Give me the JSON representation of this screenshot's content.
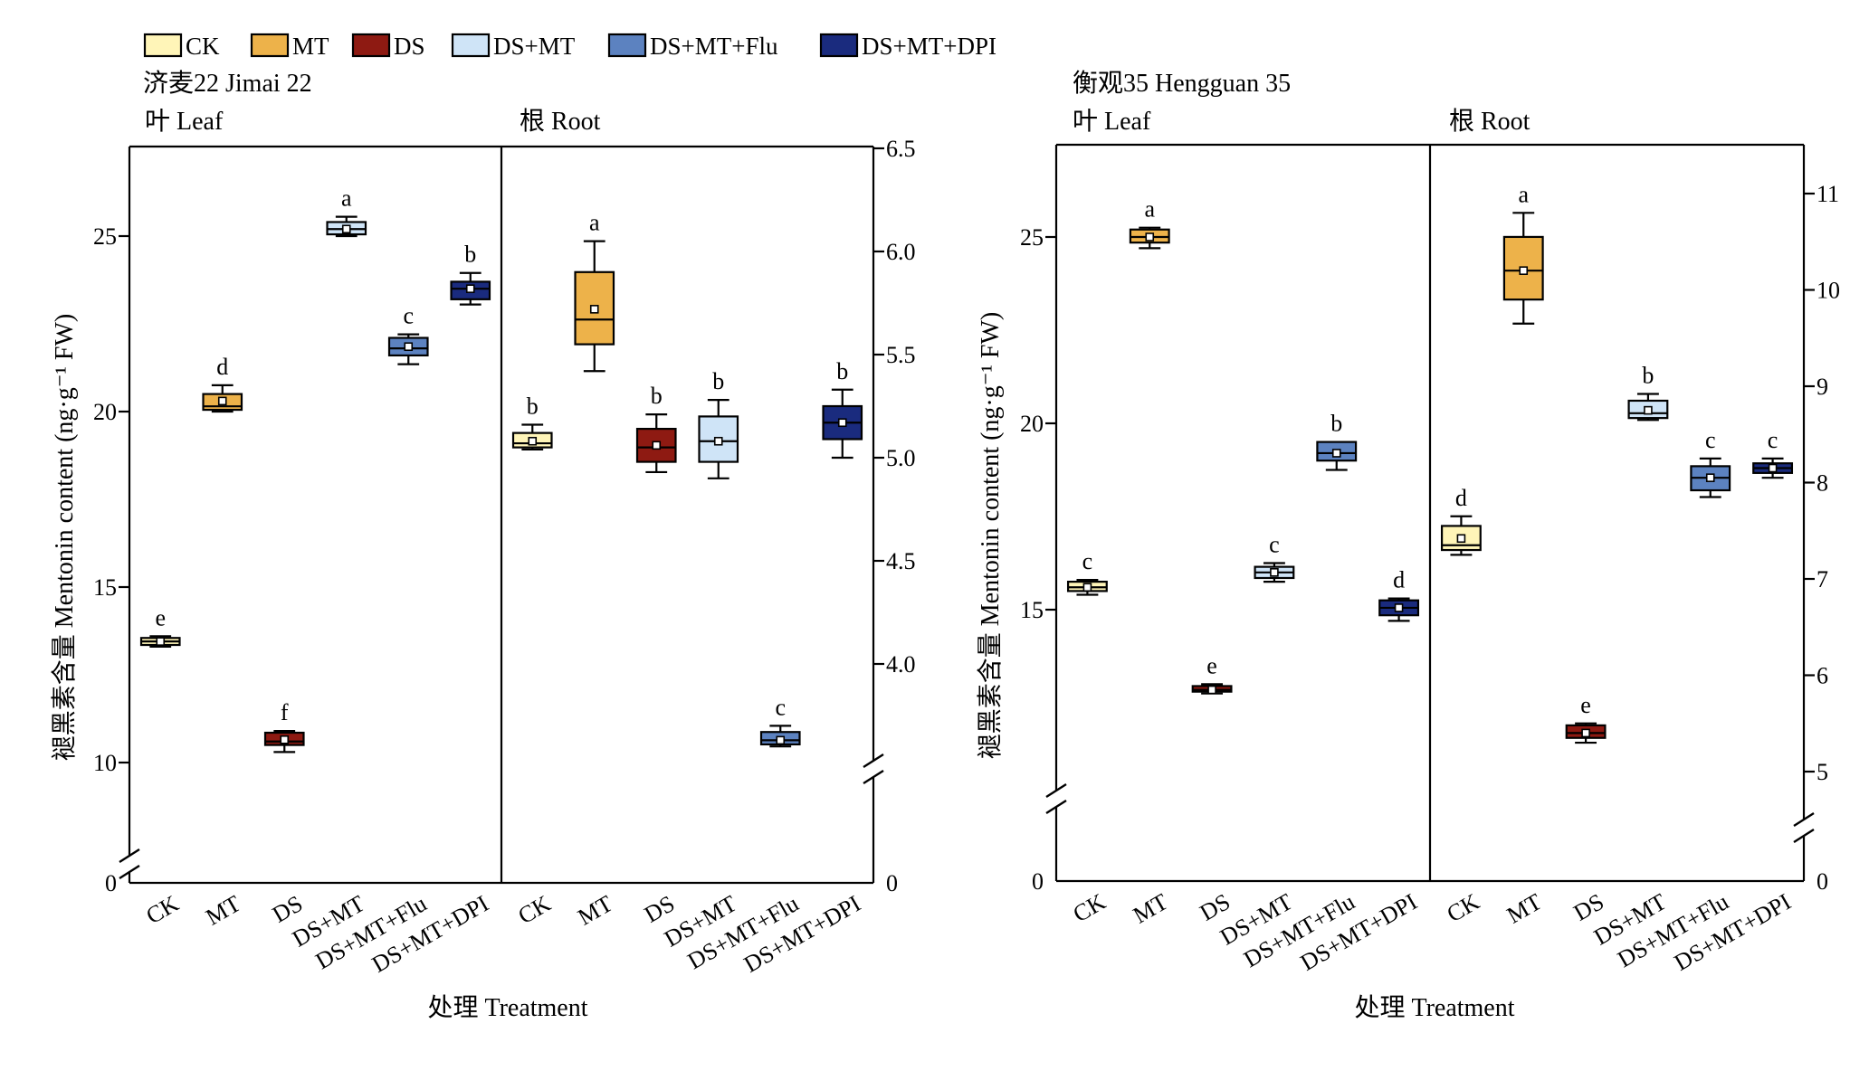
{
  "legend": [
    {
      "label": "CK",
      "color": "#FFF5B8"
    },
    {
      "label": "MT",
      "color": "#EDB24A"
    },
    {
      "label": "DS",
      "color": "#8E1A12"
    },
    {
      "label": "DS+MT",
      "color": "#CFE4F7"
    },
    {
      "label": "DS+MT+Flu",
      "color": "#5C82C0"
    },
    {
      "label": "DS+MT+DPI",
      "color": "#1A2B7E"
    }
  ],
  "y_axis_title": "褪黑素含量 Mentonin content (ng·g⁻¹ FW)",
  "x_axis_title": "处理 Treatment",
  "chart_data": [
    {
      "type": "box",
      "title": "济麦22 Jimai 22",
      "categories": [
        "CK",
        "MT",
        "DS",
        "DS+MT",
        "DS+MT+Flu",
        "DS+MT+DPI"
      ],
      "panels": [
        {
          "label": "叶 Leaf",
          "axis_side": "left",
          "y_ticks": [
            "0",
            "10",
            "15",
            "20",
            "25"
          ],
          "y_break": [
            0,
            8.5
          ],
          "ylim": [
            8.5,
            27.5
          ],
          "boxes": [
            {
              "category": "CK",
              "min": 13.3,
              "q1": 13.35,
              "median": 13.45,
              "q3": 13.55,
              "max": 13.6,
              "mean": 13.45,
              "letter": "e"
            },
            {
              "category": "MT",
              "min": 20.0,
              "q1": 20.05,
              "median": 20.15,
              "q3": 20.5,
              "max": 20.75,
              "mean": 20.3,
              "letter": "d"
            },
            {
              "category": "DS",
              "min": 10.3,
              "q1": 10.5,
              "median": 10.6,
              "q3": 10.85,
              "max": 10.9,
              "mean": 10.65,
              "letter": "f"
            },
            {
              "category": "DS+MT",
              "min": 25.0,
              "q1": 25.05,
              "median": 25.2,
              "q3": 25.4,
              "max": 25.55,
              "mean": 25.2,
              "letter": "a"
            },
            {
              "category": "DS+MT+Flu",
              "min": 21.35,
              "q1": 21.6,
              "median": 21.8,
              "q3": 22.1,
              "max": 22.2,
              "mean": 21.85,
              "letter": "c"
            },
            {
              "category": "DS+MT+DPI",
              "min": 23.05,
              "q1": 23.2,
              "median": 23.5,
              "q3": 23.7,
              "max": 23.95,
              "mean": 23.5,
              "letter": "b"
            }
          ]
        },
        {
          "label": "根 Root",
          "axis_side": "right",
          "y_ticks": [
            "0",
            "4.0",
            "4.5",
            "5.0",
            "5.5",
            "6.0",
            "6.5"
          ],
          "y_break": [
            0,
            3.5
          ],
          "ylim": [
            3.5,
            6.5
          ],
          "boxes": [
            {
              "category": "CK",
              "min": 5.04,
              "q1": 5.05,
              "median": 5.07,
              "q3": 5.12,
              "max": 5.16,
              "mean": 5.08,
              "letter": "b"
            },
            {
              "category": "MT",
              "min": 5.42,
              "q1": 5.55,
              "median": 5.67,
              "q3": 5.9,
              "max": 6.05,
              "mean": 5.72,
              "letter": "a"
            },
            {
              "category": "DS",
              "min": 4.93,
              "q1": 4.98,
              "median": 5.05,
              "q3": 5.14,
              "max": 5.21,
              "mean": 5.06,
              "letter": "b"
            },
            {
              "category": "DS+MT",
              "min": 4.9,
              "q1": 4.98,
              "median": 5.08,
              "q3": 5.2,
              "max": 5.28,
              "mean": 5.08,
              "letter": "b"
            },
            {
              "category": "DS+MT+Flu",
              "min": 3.6,
              "q1": 3.61,
              "median": 3.63,
              "q3": 3.67,
              "max": 3.7,
              "mean": 3.63,
              "letter": "c"
            },
            {
              "category": "DS+MT+DPI",
              "min": 5.0,
              "q1": 5.09,
              "median": 5.17,
              "q3": 5.25,
              "max": 5.33,
              "mean": 5.17,
              "letter": "b"
            }
          ]
        }
      ]
    },
    {
      "type": "box",
      "title": "衡观35 Hengguan 35",
      "categories": [
        "CK",
        "MT",
        "DS",
        "DS+MT",
        "DS+MT+Flu",
        "DS+MT+DPI"
      ],
      "panels": [
        {
          "label": "叶 Leaf",
          "axis_side": "left",
          "y_ticks": [
            "0",
            "15",
            "20",
            "25"
          ],
          "y_break": [
            0,
            10.5
          ],
          "ylim": [
            10.5,
            27.5
          ],
          "boxes": [
            {
              "category": "CK",
              "min": 15.4,
              "q1": 15.5,
              "median": 15.6,
              "q3": 15.75,
              "max": 15.8,
              "mean": 15.6,
              "letter": "c"
            },
            {
              "category": "MT",
              "min": 24.7,
              "q1": 24.85,
              "median": 25.0,
              "q3": 25.2,
              "max": 25.25,
              "mean": 25.0,
              "letter": "a"
            },
            {
              "category": "DS",
              "min": 12.75,
              "q1": 12.8,
              "median": 12.85,
              "q3": 12.95,
              "max": 13.0,
              "mean": 12.85,
              "letter": "e"
            },
            {
              "category": "DS+MT",
              "min": 15.75,
              "q1": 15.85,
              "median": 16.0,
              "q3": 16.15,
              "max": 16.25,
              "mean": 16.0,
              "letter": "c"
            },
            {
              "category": "DS+MT+Flu",
              "min": 18.75,
              "q1": 19.0,
              "median": 19.2,
              "q3": 19.5,
              "max": 19.5,
              "mean": 19.2,
              "letter": "b"
            },
            {
              "category": "DS+MT+DPI",
              "min": 14.7,
              "q1": 14.85,
              "median": 15.05,
              "q3": 15.25,
              "max": 15.3,
              "mean": 15.05,
              "letter": "d"
            }
          ]
        },
        {
          "label": "根 Root",
          "axis_side": "right",
          "y_ticks": [
            "0",
            "5",
            "6",
            "7",
            "8",
            "9",
            "10",
            "11"
          ],
          "y_break": [
            0,
            4.5
          ],
          "ylim": [
            4.5,
            11.5
          ],
          "boxes": [
            {
              "category": "CK",
              "min": 7.25,
              "q1": 7.3,
              "median": 7.35,
              "q3": 7.55,
              "max": 7.65,
              "mean": 7.42,
              "letter": "d"
            },
            {
              "category": "MT",
              "min": 9.65,
              "q1": 9.9,
              "median": 10.2,
              "q3": 10.55,
              "max": 10.8,
              "mean": 10.2,
              "letter": "a"
            },
            {
              "category": "DS",
              "min": 5.3,
              "q1": 5.35,
              "median": 5.4,
              "q3": 5.48,
              "max": 5.5,
              "mean": 5.4,
              "letter": "e"
            },
            {
              "category": "DS+MT",
              "min": 8.65,
              "q1": 8.67,
              "median": 8.72,
              "q3": 8.85,
              "max": 8.92,
              "mean": 8.75,
              "letter": "b"
            },
            {
              "category": "DS+MT+Flu",
              "min": 7.85,
              "q1": 7.92,
              "median": 8.05,
              "q3": 8.17,
              "max": 8.25,
              "mean": 8.05,
              "letter": "c"
            },
            {
              "category": "DS+MT+DPI",
              "min": 8.05,
              "q1": 8.1,
              "median": 8.15,
              "q3": 8.2,
              "max": 8.25,
              "mean": 8.15,
              "letter": "c"
            }
          ]
        }
      ]
    }
  ]
}
